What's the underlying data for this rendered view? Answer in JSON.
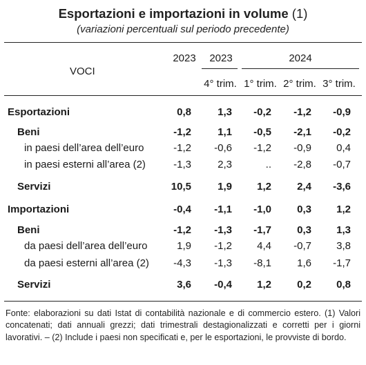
{
  "title": "Esportazioni e importazioni in volume",
  "title_note": "(1)",
  "subtitle": "(variazioni percentuali sul periodo precedente)",
  "header": {
    "voci": "VOCI",
    "years": [
      "2023",
      "2023",
      "2024"
    ],
    "quarters": [
      "4° trim.",
      "1° trim.",
      "2° trim.",
      "3° trim."
    ]
  },
  "rows": [
    {
      "label": "Esportazioni",
      "level": 0,
      "bold": true,
      "values": [
        "0,8",
        "1,3",
        "-0,2",
        "-1,2",
        "-0,9"
      ]
    },
    {
      "label": "Beni",
      "level": 1,
      "bold": true,
      "values": [
        "-1,2",
        "1,1",
        "-0,5",
        "-2,1",
        "-0,2"
      ]
    },
    {
      "label": "in paesi dell’area dell’euro",
      "level": 2,
      "bold": false,
      "values": [
        "-1,2",
        "-0,6",
        "-1,2",
        "-0,9",
        "0,4"
      ]
    },
    {
      "label": "in paesi esterni all’area (2)",
      "level": 2,
      "bold": false,
      "values": [
        "-1,3",
        "2,3",
        "..",
        "-2,8",
        "-0,7"
      ]
    },
    {
      "label": "Servizi",
      "level": 1,
      "bold": true,
      "values": [
        "10,5",
        "1,9",
        "1,2",
        "2,4",
        "-3,6"
      ]
    },
    {
      "label": "Importazioni",
      "level": 0,
      "bold": true,
      "values": [
        "-0,4",
        "-1,1",
        "-1,0",
        "0,3",
        "1,2"
      ]
    },
    {
      "label": "Beni",
      "level": 1,
      "bold": true,
      "values": [
        "-1,2",
        "-1,3",
        "-1,7",
        "0,3",
        "1,3"
      ]
    },
    {
      "label": "da paesi dell’area dell’euro",
      "level": 2,
      "bold": false,
      "values": [
        "1,9",
        "-1,2",
        "4,4",
        "-0,7",
        "3,8"
      ]
    },
    {
      "label": "da paesi esterni all’area (2)",
      "level": 2,
      "bold": false,
      "values": [
        "-4,3",
        "-1,3",
        "-8,1",
        "1,6",
        "-1,7"
      ]
    },
    {
      "label": "Servizi",
      "level": 1,
      "bold": true,
      "values": [
        "3,6",
        "-0,4",
        "1,2",
        "0,2",
        "0,8"
      ]
    }
  ],
  "footer": "Fonte: elaborazioni su dati Istat di contabilità nazionale e di commercio estero. (1) Valori concatenati; dati annuali grezzi; dati trimestrali destagionalizzati e corretti per i giorni lavorativi. – (2) Include i paesi non specificati e, per le esportazioni, le provviste di bordo."
}
